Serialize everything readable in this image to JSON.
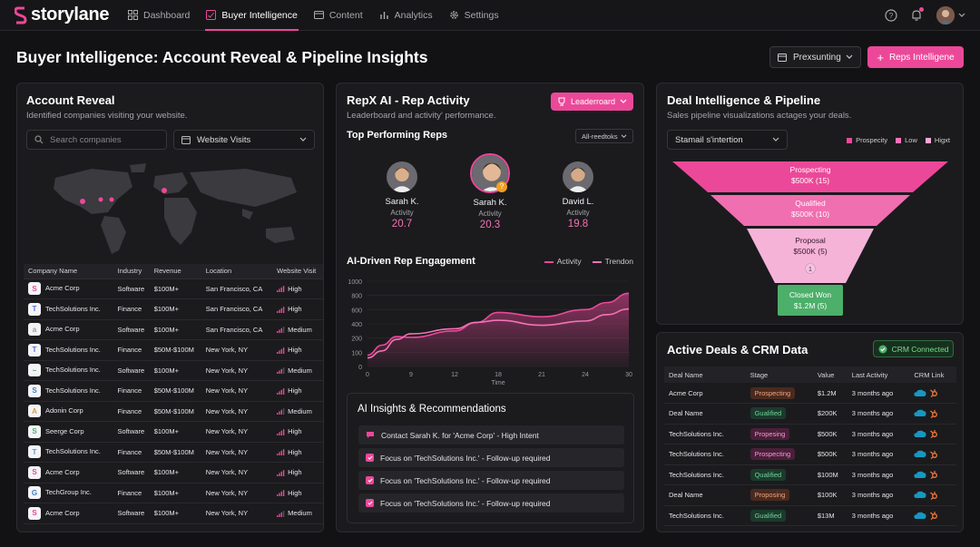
{
  "app": {
    "name": "storylane"
  },
  "nav": {
    "items": [
      {
        "label": "Dashboard",
        "icon": "dashboard-icon"
      },
      {
        "label": "Buyer Intelligence",
        "icon": "buyer-intel-icon",
        "active": true
      },
      {
        "label": "Content",
        "icon": "content-icon"
      },
      {
        "label": "Analytics",
        "icon": "analytics-icon"
      },
      {
        "label": "Settings",
        "icon": "gear-icon"
      }
    ]
  },
  "header": {
    "title": "Buyer Intelligence: Account Reveal & Pipeline Insights",
    "date_button": "Prexsunting",
    "primary_button": "Reps Intelligene"
  },
  "account_reveal": {
    "title": "Account Reveal",
    "subtitle": "Identified companies visiting your website.",
    "search_placeholder": "Search companies",
    "filter_value": "Website Visits",
    "columns": [
      "Company Name",
      "Industry",
      "Revenue",
      "Location",
      "Website Visit"
    ],
    "rows": [
      {
        "company": "Acme Corp",
        "industry": "Software",
        "revenue": "$100M+",
        "location": "San Francisco, CA",
        "visit": "High",
        "logo": "S",
        "logo_color": "#ec4899"
      },
      {
        "company": "TechSolutions Inc.",
        "industry": "Finance",
        "revenue": "$100M+",
        "location": "San Francisco, CA",
        "visit": "High",
        "logo": "T",
        "logo_color": "#4f6ee0"
      },
      {
        "company": "Acme Corp",
        "industry": "Software",
        "revenue": "$100M+",
        "location": "San Francisco, CA",
        "visit": "Medium",
        "logo": "a",
        "logo_color": "#9a9aa0"
      },
      {
        "company": "TechSolutions Inc.",
        "industry": "Finance",
        "revenue": "$50M-$100M",
        "location": "New York, NY",
        "visit": "High",
        "logo": "T",
        "logo_color": "#4f6ee0"
      },
      {
        "company": "TechSolutions Inc.",
        "industry": "Software",
        "revenue": "$100M+",
        "location": "New York, NY",
        "visit": "Medium",
        "logo": "~",
        "logo_color": "#4ab07a"
      },
      {
        "company": "TechSolutions Inc.",
        "industry": "Finance",
        "revenue": "$50M-$100M",
        "location": "New York, NY",
        "visit": "High",
        "logo": "S",
        "logo_color": "#3b82c4"
      },
      {
        "company": "Adonin Corp",
        "industry": "Finance",
        "revenue": "$50M-$100M",
        "location": "New York, NY",
        "visit": "Medium",
        "logo": "A",
        "logo_color": "#d9a03a"
      },
      {
        "company": "Seerge Corp",
        "industry": "Software",
        "revenue": "$100M+",
        "location": "New York, NY",
        "visit": "High",
        "logo": "S",
        "logo_color": "#4ab07a"
      },
      {
        "company": "TechSolutions Inc.",
        "industry": "Finance",
        "revenue": "$50M-$100M",
        "location": "New York, NY",
        "visit": "High",
        "logo": "T",
        "logo_color": "#4f9ae0"
      },
      {
        "company": "Acme Corp",
        "industry": "Software",
        "revenue": "$100M+",
        "location": "New York, NY",
        "visit": "High",
        "logo": "S",
        "logo_color": "#ec4899"
      },
      {
        "company": "TechGroup Inc.",
        "industry": "Finance",
        "revenue": "$100M+",
        "location": "New York, NY",
        "visit": "High",
        "logo": "G",
        "logo_color": "#3b82c4"
      },
      {
        "company": "Acme Corp",
        "industry": "Software",
        "revenue": "$100M+",
        "location": "New York, NY",
        "visit": "Medium",
        "logo": "S",
        "logo_color": "#ec4899"
      }
    ]
  },
  "rep_activity": {
    "title": "RepX AI - Rep Activity",
    "subtitle": "Leaderboard and activity' performance.",
    "leaderboard_button": "Leaderroard",
    "top_title": "Top Performing Reps",
    "top_filter": "All-reedtoks",
    "reps": [
      {
        "name": "Sarah K.",
        "label": "Activity",
        "value": "20.7"
      },
      {
        "name": "Sarah K.",
        "label": "Activity",
        "value": "20.3",
        "badge": "?"
      },
      {
        "name": "David L.",
        "label": "Activity",
        "value": "19.8"
      }
    ]
  },
  "chart_data": {
    "type": "line",
    "title": "AI-Driven Rep Engagement",
    "xlabel": "Time",
    "ylabel": "",
    "x_ticks": [
      0,
      9,
      12,
      18,
      21,
      24,
      30
    ],
    "y_ticks": [
      0,
      100,
      200,
      400,
      600,
      800,
      1000
    ],
    "ylim": [
      0,
      1000
    ],
    "legend_position": "top-right",
    "series": [
      {
        "name": "Activity",
        "color": "#ec4899",
        "x": [
          0,
          3,
          6,
          9,
          12,
          15,
          18,
          21,
          24,
          27,
          30
        ],
        "values": [
          80,
          150,
          220,
          210,
          300,
          420,
          560,
          500,
          600,
          700,
          830
        ]
      },
      {
        "name": "Trendon",
        "color": "#f472b6",
        "x": [
          0,
          3,
          6,
          9,
          12,
          15,
          18,
          21,
          24,
          27,
          30
        ],
        "values": [
          60,
          110,
          190,
          260,
          330,
          420,
          450,
          380,
          440,
          530,
          610
        ]
      }
    ]
  },
  "insights": {
    "title": "AI Insights & Recommendations",
    "items": [
      "Contact Sarah K. for 'Acme Corp' - High Intent",
      "Focus on 'TechSolutions Inc.' - Follow-up required",
      "Focus on 'TechSolutions Inc.' - Follow-up required",
      "Focus on 'TechSolutions Inc.' - Follow-up required"
    ]
  },
  "pipeline": {
    "title": "Deal Intelligence & Pipeline",
    "subtitle": "Sales pipeline visualizations actages your deals.",
    "select_value": "Stamail s'intertion",
    "legend": [
      {
        "label": "Prospecity",
        "color": "#ec4899"
      },
      {
        "label": "Low",
        "color": "#f472b6"
      },
      {
        "label": "Higxt",
        "color": "#f9a8d4"
      }
    ],
    "stages": [
      {
        "name": "Prospecting",
        "value": "$500K (15)",
        "color": "#ec4899"
      },
      {
        "name": "Qualified",
        "value": "$500K (10)",
        "color": "#f06fb0"
      },
      {
        "name": "Proposal",
        "value": "$500K (5)",
        "color": "#f6b3d8",
        "badge": "1"
      },
      {
        "name": "Closed Won",
        "value": "$1.2M (5)",
        "color": "#4caf6a"
      }
    ]
  },
  "deals": {
    "title": "Active Deals & CRM Data",
    "crm_status": "CRM Connected",
    "columns": [
      "Deal Name",
      "Stage",
      "Value",
      "Last Activity",
      "CRM Link"
    ],
    "rows": [
      {
        "name": "Acme Corp",
        "stage": "Prospecting",
        "stage_type": "prospecting",
        "value": "$1.2M",
        "activity": "3 months ago"
      },
      {
        "name": "Deal Name",
        "stage": "Gualified",
        "stage_type": "qualified",
        "value": "$200K",
        "activity": "3 months ago"
      },
      {
        "name": "TechSolutions Inc.",
        "stage": "Propesing",
        "stage_type": "proposing",
        "value": "$500K",
        "activity": "3 months ago"
      },
      {
        "name": "TechSolutions Inc.",
        "stage": "Prospecting",
        "stage_type": "proposing",
        "value": "$500K",
        "activity": "3 months ago"
      },
      {
        "name": "TechSolutions Inc.",
        "stage": "Qualified",
        "stage_type": "qualified",
        "value": "$100M",
        "activity": "3 months ago"
      },
      {
        "name": "Deal Name",
        "stage": "Proposing",
        "stage_type": "prospecting",
        "value": "$100K",
        "activity": "3 months ago"
      },
      {
        "name": "TechSolutions Inc.",
        "stage": "Gualified",
        "stage_type": "qualified",
        "value": "$13M",
        "activity": "3 months ago"
      }
    ]
  }
}
